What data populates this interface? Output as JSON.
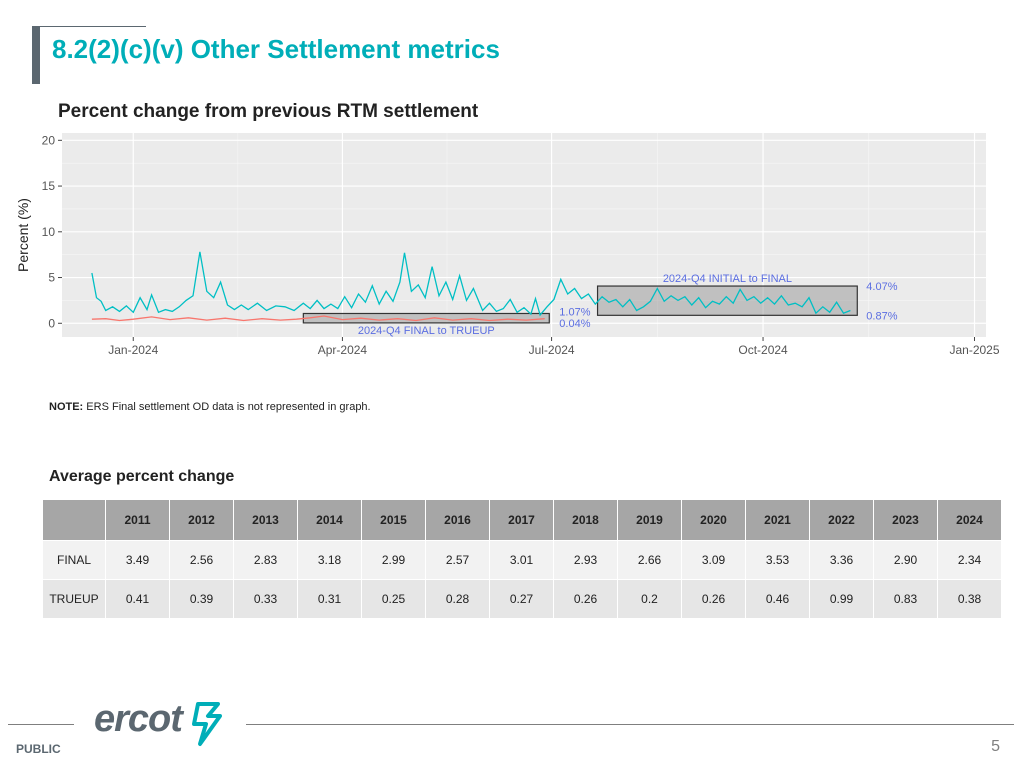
{
  "slide": {
    "title": "8.2(2)(c)(v) Other Settlement metrics",
    "note_label": "NOTE:",
    "note_text": "ERS Final settlement OD data is not represented in graph.",
    "table_title": "Average percent change",
    "footer_label": "PUBLIC",
    "page_number": "5",
    "logo_text": "ercot",
    "accent_color": "#00aeb8",
    "gray_color": "#5b6770"
  },
  "chart_data": {
    "type": "line",
    "title": "Percent change from previous RTM settlement",
    "ylabel": "Percent (%)",
    "xlabel": "",
    "x_range": [
      "2023-12-01",
      "2025-01-06"
    ],
    "ylim": [
      -1.5,
      20.8
    ],
    "yticks": [
      0,
      5,
      10,
      15,
      20
    ],
    "xticks": [
      {
        "date": "2024-01-01",
        "label": "Jan-2024"
      },
      {
        "date": "2024-04-01",
        "label": "Apr-2024"
      },
      {
        "date": "2024-07-01",
        "label": "Jul-2024"
      },
      {
        "date": "2024-10-01",
        "label": "Oct-2024"
      },
      {
        "date": "2025-01-01",
        "label": "Jan-2025"
      }
    ],
    "grid": true,
    "series": [
      {
        "color": "#00bfc4",
        "points": [
          [
            "2023-12-14",
            5.5
          ],
          [
            "2023-12-16",
            2.8
          ],
          [
            "2023-12-18",
            2.4
          ],
          [
            "2023-12-20",
            1.4
          ],
          [
            "2023-12-23",
            1.8
          ],
          [
            "2023-12-26",
            1.3
          ],
          [
            "2023-12-29",
            1.9
          ],
          [
            "2024-01-01",
            1.2
          ],
          [
            "2024-01-04",
            2.8
          ],
          [
            "2024-01-07",
            1.5
          ],
          [
            "2024-01-09",
            3.1
          ],
          [
            "2024-01-12",
            1.2
          ],
          [
            "2024-01-15",
            1.5
          ],
          [
            "2024-01-18",
            1.3
          ],
          [
            "2024-01-21",
            1.8
          ],
          [
            "2024-01-24",
            2.5
          ],
          [
            "2024-01-27",
            3.0
          ],
          [
            "2024-01-30",
            7.8
          ],
          [
            "2024-02-02",
            3.5
          ],
          [
            "2024-02-05",
            2.8
          ],
          [
            "2024-02-08",
            4.5
          ],
          [
            "2024-02-11",
            2.0
          ],
          [
            "2024-02-14",
            1.5
          ],
          [
            "2024-02-17",
            2.0
          ],
          [
            "2024-02-20",
            1.5
          ],
          [
            "2024-02-24",
            2.2
          ],
          [
            "2024-02-28",
            1.4
          ],
          [
            "2024-03-03",
            1.9
          ],
          [
            "2024-03-07",
            1.8
          ],
          [
            "2024-03-11",
            1.4
          ],
          [
            "2024-03-15",
            2.2
          ],
          [
            "2024-03-18",
            1.6
          ],
          [
            "2024-03-21",
            2.5
          ],
          [
            "2024-03-24",
            1.6
          ],
          [
            "2024-03-27",
            2.1
          ],
          [
            "2024-03-30",
            1.6
          ],
          [
            "2024-04-02",
            2.9
          ],
          [
            "2024-04-05",
            1.7
          ],
          [
            "2024-04-08",
            3.2
          ],
          [
            "2024-04-11",
            2.3
          ],
          [
            "2024-04-14",
            4.1
          ],
          [
            "2024-04-17",
            2.1
          ],
          [
            "2024-04-20",
            3.5
          ],
          [
            "2024-04-23",
            2.4
          ],
          [
            "2024-04-26",
            4.5
          ],
          [
            "2024-04-28",
            7.7
          ],
          [
            "2024-05-01",
            3.5
          ],
          [
            "2024-05-04",
            4.2
          ],
          [
            "2024-05-07",
            2.8
          ],
          [
            "2024-05-10",
            6.2
          ],
          [
            "2024-05-13",
            3.0
          ],
          [
            "2024-05-16",
            4.5
          ],
          [
            "2024-05-19",
            2.6
          ],
          [
            "2024-05-22",
            5.2
          ],
          [
            "2024-05-25",
            2.5
          ],
          [
            "2024-05-28",
            3.8
          ],
          [
            "2024-06-01",
            1.4
          ],
          [
            "2024-06-04",
            2.2
          ],
          [
            "2024-06-07",
            1.3
          ],
          [
            "2024-06-10",
            1.6
          ],
          [
            "2024-06-13",
            2.6
          ],
          [
            "2024-06-16",
            1.2
          ],
          [
            "2024-06-19",
            1.7
          ],
          [
            "2024-06-22",
            1.0
          ],
          [
            "2024-06-24",
            2.7
          ],
          [
            "2024-06-26",
            0.9
          ],
          [
            "2024-06-29",
            1.8
          ],
          [
            "2024-07-02",
            2.6
          ],
          [
            "2024-07-05",
            4.8
          ],
          [
            "2024-07-08",
            3.2
          ],
          [
            "2024-07-11",
            3.8
          ],
          [
            "2024-07-14",
            2.7
          ],
          [
            "2024-07-17",
            3.2
          ],
          [
            "2024-07-20",
            2.1
          ],
          [
            "2024-07-23",
            2.9
          ],
          [
            "2024-07-26",
            2.3
          ],
          [
            "2024-07-29",
            2.6
          ],
          [
            "2024-08-01",
            1.8
          ],
          [
            "2024-08-04",
            2.6
          ],
          [
            "2024-08-07",
            1.4
          ],
          [
            "2024-08-10",
            1.8
          ],
          [
            "2024-08-13",
            2.4
          ],
          [
            "2024-08-16",
            3.8
          ],
          [
            "2024-08-19",
            2.4
          ],
          [
            "2024-08-22",
            3.0
          ],
          [
            "2024-08-25",
            2.5
          ],
          [
            "2024-08-28",
            2.9
          ],
          [
            "2024-08-31",
            2.0
          ],
          [
            "2024-09-03",
            2.8
          ],
          [
            "2024-09-06",
            1.7
          ],
          [
            "2024-09-09",
            2.4
          ],
          [
            "2024-09-12",
            2.1
          ],
          [
            "2024-09-15",
            2.9
          ],
          [
            "2024-09-18",
            2.2
          ],
          [
            "2024-09-21",
            3.7
          ],
          [
            "2024-09-24",
            2.5
          ],
          [
            "2024-09-27",
            2.9
          ],
          [
            "2024-09-30",
            2.2
          ],
          [
            "2024-10-03",
            2.8
          ],
          [
            "2024-10-06",
            2.1
          ],
          [
            "2024-10-09",
            3.0
          ],
          [
            "2024-10-12",
            2.0
          ],
          [
            "2024-10-15",
            2.2
          ],
          [
            "2024-10-18",
            1.8
          ],
          [
            "2024-10-21",
            2.8
          ],
          [
            "2024-10-24",
            1.1
          ],
          [
            "2024-10-27",
            1.8
          ],
          [
            "2024-10-30",
            1.2
          ],
          [
            "2024-11-02",
            2.3
          ],
          [
            "2024-11-05",
            1.1
          ],
          [
            "2024-11-08",
            1.4
          ]
        ]
      },
      {
        "color": "#f8766d",
        "points": [
          [
            "2023-12-14",
            0.45
          ],
          [
            "2023-12-20",
            0.5
          ],
          [
            "2023-12-26",
            0.3
          ],
          [
            "2024-01-01",
            0.45
          ],
          [
            "2024-01-09",
            0.7
          ],
          [
            "2024-01-17",
            0.4
          ],
          [
            "2024-01-25",
            0.6
          ],
          [
            "2024-02-02",
            0.35
          ],
          [
            "2024-02-10",
            0.55
          ],
          [
            "2024-02-18",
            0.3
          ],
          [
            "2024-02-26",
            0.5
          ],
          [
            "2024-03-05",
            0.35
          ],
          [
            "2024-03-12",
            0.45
          ],
          [
            "2024-03-18",
            0.6
          ],
          [
            "2024-03-24",
            0.8
          ],
          [
            "2024-04-01",
            0.4
          ],
          [
            "2024-04-09",
            0.55
          ],
          [
            "2024-04-17",
            0.35
          ],
          [
            "2024-04-25",
            0.5
          ],
          [
            "2024-05-03",
            0.3
          ],
          [
            "2024-05-11",
            0.6
          ],
          [
            "2024-05-19",
            0.35
          ],
          [
            "2024-05-27",
            0.5
          ],
          [
            "2024-06-04",
            0.3
          ],
          [
            "2024-06-12",
            0.45
          ],
          [
            "2024-06-20",
            0.35
          ],
          [
            "2024-06-28",
            0.5
          ]
        ]
      }
    ],
    "annotations": [
      {
        "label": "2024-Q4 FINAL to TRUEUP",
        "start": "2024-03-15",
        "end": "2024-06-30",
        "ymin": 0.04,
        "ymax": 1.07,
        "low_label": "0.04%",
        "high_label": "1.07%"
      },
      {
        "label": "2024-Q4 INITIAL to FINAL",
        "start": "2024-07-21",
        "end": "2024-11-11",
        "ymin": 0.87,
        "ymax": 4.07,
        "low_label": "0.87%",
        "high_label": "4.07%"
      }
    ],
    "annotation_color": "#5b6ee1"
  },
  "table": {
    "columns": [
      "",
      "2011",
      "2012",
      "2013",
      "2014",
      "2015",
      "2016",
      "2017",
      "2018",
      "2019",
      "2020",
      "2021",
      "2022",
      "2023",
      "2024"
    ],
    "rows": [
      [
        "FINAL",
        "3.49",
        "2.56",
        "2.83",
        "3.18",
        "2.99",
        "2.57",
        "3.01",
        "2.93",
        "2.66",
        "3.09",
        "3.53",
        "3.36",
        "2.90",
        "2.34"
      ],
      [
        "TRUEUP",
        "0.41",
        "0.39",
        "0.33",
        "0.31",
        "0.25",
        "0.28",
        "0.27",
        "0.26",
        "0.2",
        "0.26",
        "0.46",
        "0.99",
        "0.83",
        "0.38"
      ]
    ]
  }
}
